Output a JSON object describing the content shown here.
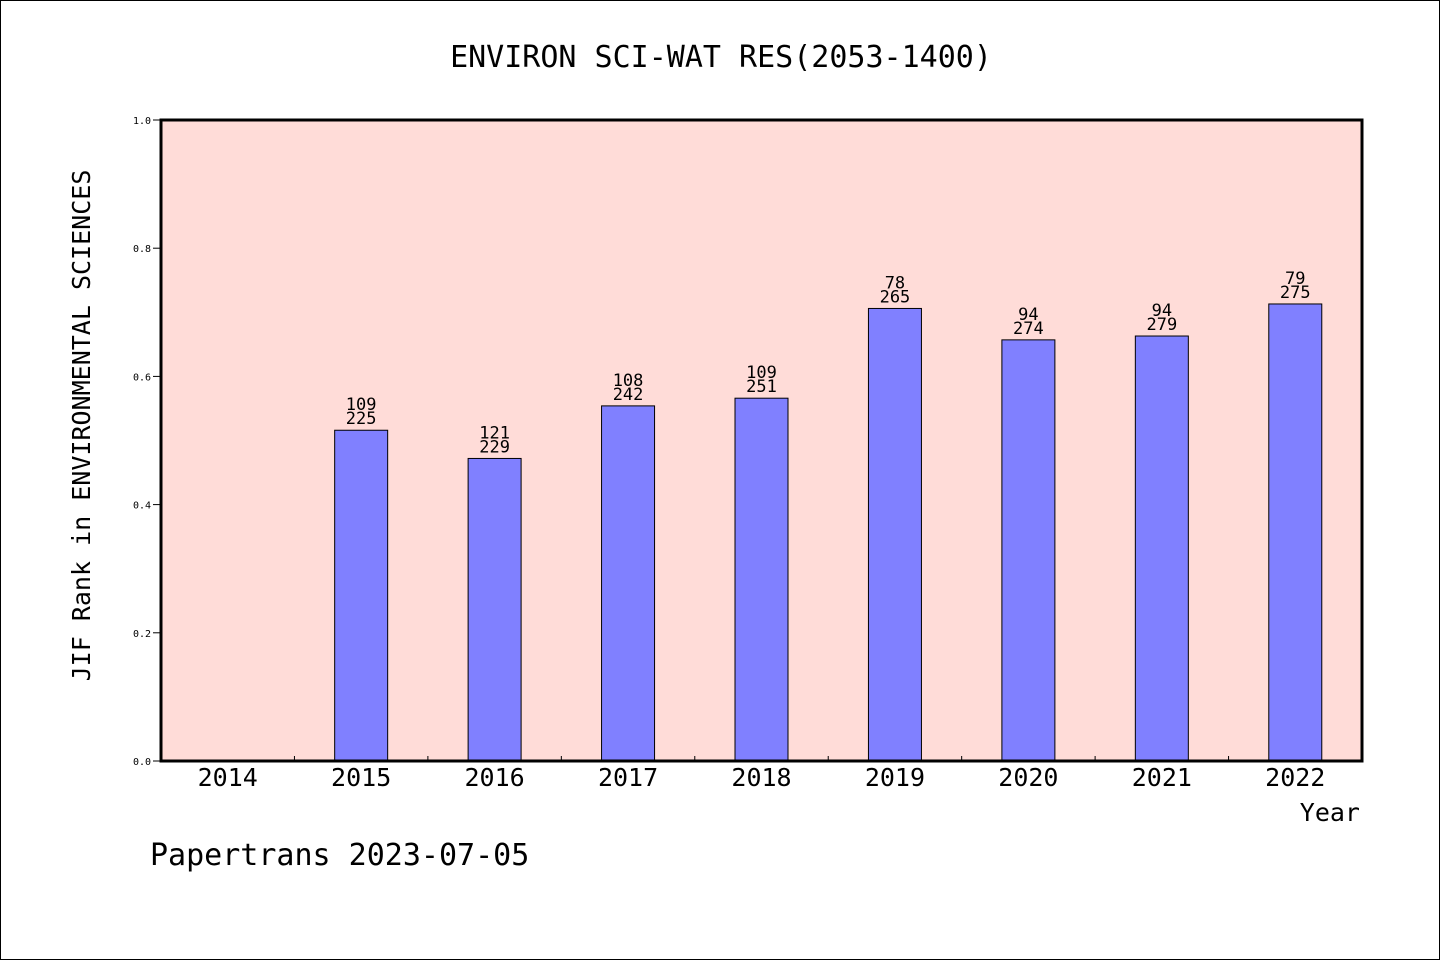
{
  "chart_data": {
    "type": "bar",
    "title": "ENVIRON SCI-WAT RES(2053-1400)",
    "xlabel": "Year",
    "ylabel": "JIF Rank in ENVIRONMENTAL SCIENCES",
    "ylim": [
      0,
      1.0
    ],
    "yticks": [
      "0.0",
      "0.2",
      "0.4",
      "0.6",
      "0.8",
      "1.0"
    ],
    "categories": [
      "2014",
      "2015",
      "2016",
      "2017",
      "2018",
      "2019",
      "2020",
      "2021",
      "2022"
    ],
    "values": [
      null,
      0.516,
      0.472,
      0.554,
      0.566,
      0.706,
      0.657,
      0.663,
      0.713
    ],
    "rank_labels": [
      "",
      "109",
      "121",
      "108",
      "109",
      "78",
      "94",
      "94",
      "79"
    ],
    "total_labels": [
      "",
      "225",
      "229",
      "242",
      "251",
      "265",
      "274",
      "279",
      "275"
    ],
    "grid": false,
    "colors": {
      "bar": "#8080ff",
      "plot_background": "#ffdcd8",
      "axis": "#000000"
    }
  },
  "footer": {
    "text": "Papertrans 2023-07-05"
  }
}
